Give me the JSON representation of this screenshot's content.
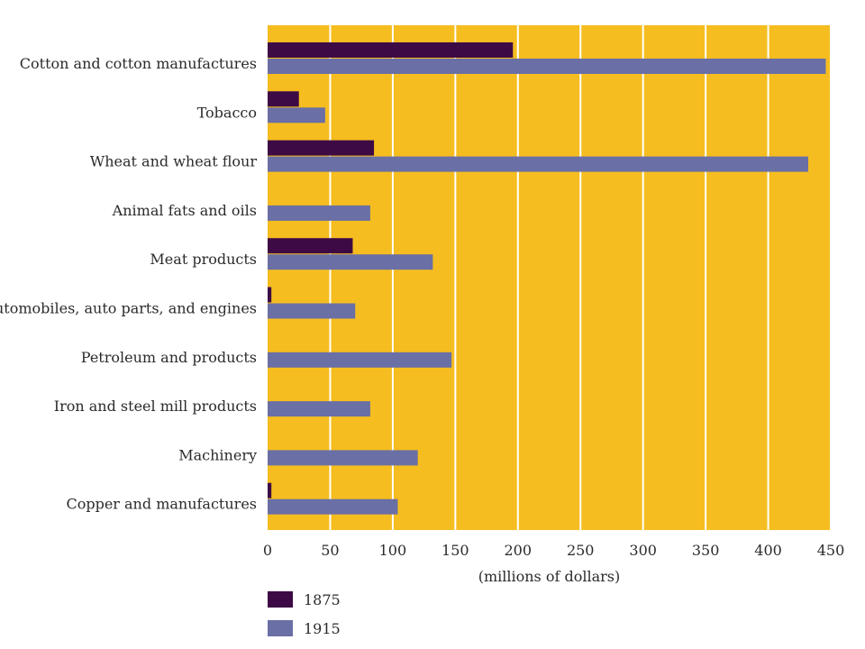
{
  "chart_data": {
    "type": "bar",
    "orientation": "horizontal",
    "categories": [
      "Cotton and cotton manufactures",
      "Tobacco",
      "Wheat and wheat flour",
      "Animal fats and oils",
      "Meat products",
      "Automobiles, auto parts, and engines",
      "Petroleum and products",
      "Iron and steel mill products",
      "Machinery",
      "Copper and manufactures"
    ],
    "series": [
      {
        "name": "1875",
        "color": "#3d0a45",
        "values": [
          196,
          25,
          85,
          0,
          68,
          3,
          0,
          0,
          0,
          3
        ]
      },
      {
        "name": "1915",
        "color": "#6a6fa6",
        "values": [
          446,
          46,
          432,
          82,
          132,
          70,
          147,
          82,
          120,
          104
        ]
      }
    ],
    "xticks": [
      "0",
      "50",
      "100",
      "150",
      "200",
      "250",
      "300",
      "350",
      "400",
      "450"
    ],
    "xlim": [
      0,
      450
    ],
    "xlabel": "(millions of dollars)",
    "title": "",
    "grid": true,
    "grid_color": "#ffffff",
    "plot_background": "#f5bd1f",
    "legend_position": "bottom-left"
  }
}
